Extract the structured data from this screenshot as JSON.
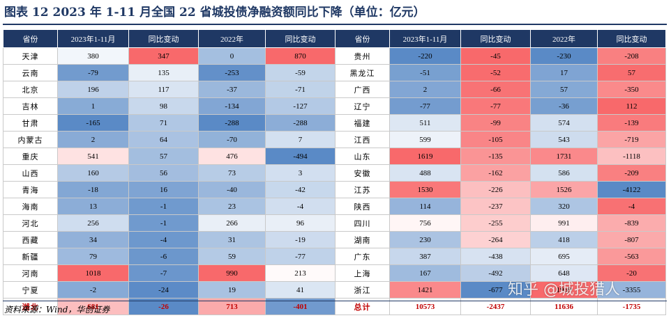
{
  "title": "图表 12   2023 年 1-11 月全国 22 省城投债净融资额同比下降（单位：亿元）",
  "headers": [
    "省份",
    "2023年1-11月",
    "同比变动",
    "2022年",
    "同比变动",
    "省份",
    "2023年1-11月",
    "同比变动",
    "2022年",
    "同比变动"
  ],
  "rows": [
    [
      "天津",
      "380",
      "347",
      "0",
      "870",
      "贵州",
      "-220",
      "-45",
      "-230",
      "-208"
    ],
    [
      "云南",
      "-79",
      "135",
      "-253",
      "-59",
      "黑龙江",
      "-51",
      "-52",
      "17",
      "57"
    ],
    [
      "北京",
      "196",
      "117",
      "-37",
      "-71",
      "广西",
      "2",
      "-66",
      "57",
      "-350"
    ],
    [
      "吉林",
      "1",
      "98",
      "-134",
      "-127",
      "辽宁",
      "-77",
      "-77",
      "-36",
      "112"
    ],
    [
      "甘肃",
      "-165",
      "71",
      "-288",
      "-288",
      "福建",
      "511",
      "-99",
      "574",
      "-139"
    ],
    [
      "内蒙古",
      "2",
      "64",
      "-70",
      "7",
      "江西",
      "599",
      "-105",
      "543",
      "-719"
    ],
    [
      "重庆",
      "541",
      "57",
      "476",
      "-494",
      "山东",
      "1619",
      "-135",
      "1731",
      "-1118"
    ],
    [
      "山西",
      "160",
      "56",
      "73",
      "3",
      "安徽",
      "488",
      "-162",
      "586",
      "-209"
    ],
    [
      "青海",
      "-18",
      "16",
      "-40",
      "-42",
      "江苏",
      "1530",
      "-226",
      "1526",
      "-4122"
    ],
    [
      "海南",
      "13",
      "-1",
      "23",
      "-4",
      "陕西",
      "114",
      "-237",
      "320",
      "-4"
    ],
    [
      "河北",
      "256",
      "-1",
      "266",
      "96",
      "四川",
      "756",
      "-255",
      "991",
      "-839"
    ],
    [
      "西藏",
      "34",
      "-4",
      "31",
      "-19",
      "湖南",
      "230",
      "-264",
      "418",
      "-807"
    ],
    [
      "新疆",
      "79",
      "-6",
      "59",
      "-77",
      "广东",
      "387",
      "-438",
      "695",
      "-563"
    ],
    [
      "河南",
      "1018",
      "-7",
      "990",
      "213",
      "上海",
      "167",
      "-492",
      "648",
      "-20"
    ],
    [
      "宁夏",
      "-2",
      "-24",
      "19",
      "41",
      "浙江",
      "1421",
      "-677",
      "1969",
      "-3355"
    ],
    [
      "湖北",
      "681",
      "-26",
      "713",
      "-401",
      "总计",
      "10573",
      "-2437",
      "11636",
      "-1735"
    ]
  ],
  "column_ranges": [
    null,
    {
      "min": -165,
      "max": 1018
    },
    {
      "min": -26,
      "max": 347
    },
    {
      "min": -288,
      "max": 990
    },
    {
      "min": -494,
      "max": 870
    },
    null,
    {
      "min": -220,
      "max": 1619
    },
    {
      "min": -677,
      "max": -45
    },
    {
      "min": -230,
      "max": 1969
    },
    {
      "min": -4122,
      "max": 112
    }
  ],
  "colors": {
    "header_bg": "#1f3864",
    "high": "#f8696b",
    "mid": "#ffffff",
    "low": "#5a8ac6",
    "total_text": "#c00000"
  },
  "source": "资料来源：Wind，华创证券",
  "watermark": "知乎 @城投猎人"
}
